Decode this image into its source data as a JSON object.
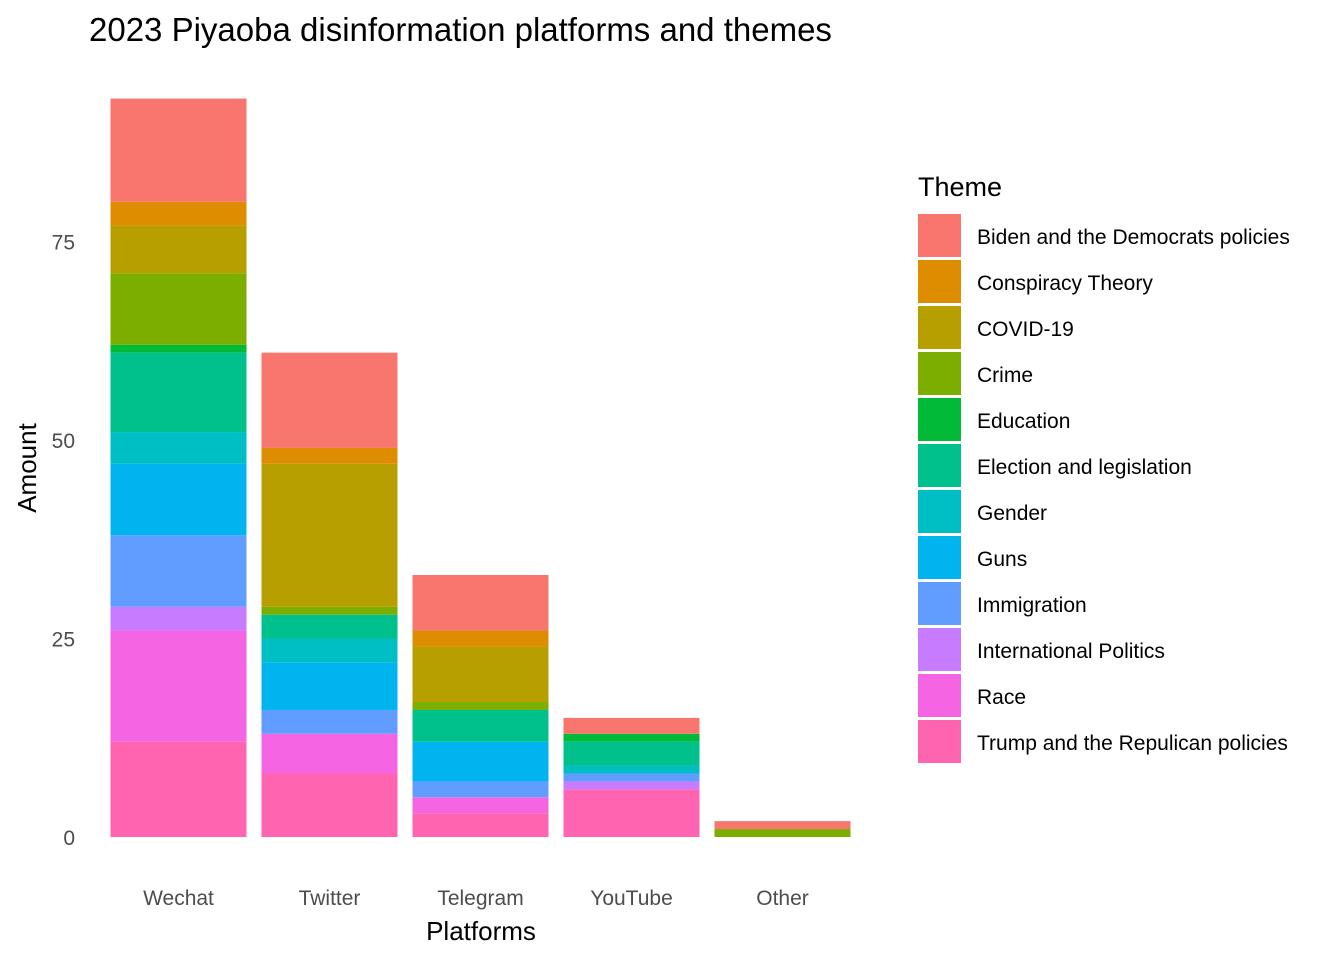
{
  "chart_data": {
    "type": "bar",
    "stacked": true,
    "title": "2023 Piyaoba disinformation platforms and themes",
    "xlabel": "Platforms",
    "ylabel": "Amount",
    "ylim": [
      0,
      95
    ],
    "yticks": [
      "0",
      "25",
      "50",
      "75"
    ],
    "grid": false,
    "legend_title": "Theme",
    "legend_placement": "right",
    "categories": [
      "Wechat",
      "Twitter",
      "Telegram",
      "YouTube",
      "Other"
    ],
    "series": [
      {
        "name": "Biden and the Democrats policies",
        "color": "#F8766D",
        "values": [
          13,
          12,
          7,
          2,
          1
        ]
      },
      {
        "name": "Conspiracy Theory",
        "color": "#DE8C00",
        "values": [
          3,
          2,
          2,
          0,
          0
        ]
      },
      {
        "name": "COVID-19",
        "color": "#B79F00",
        "values": [
          6,
          18,
          7,
          0,
          0
        ]
      },
      {
        "name": "Crime",
        "color": "#7CAE00",
        "values": [
          9,
          1,
          1,
          0,
          1
        ]
      },
      {
        "name": "Education",
        "color": "#00BA38",
        "values": [
          1,
          0,
          0,
          1,
          0
        ]
      },
      {
        "name": "Election and legislation",
        "color": "#00C08B",
        "values": [
          10,
          3,
          4,
          3,
          0
        ]
      },
      {
        "name": "Gender",
        "color": "#00BFC4",
        "values": [
          4,
          3,
          0,
          1,
          0
        ]
      },
      {
        "name": "Guns",
        "color": "#00B4F0",
        "values": [
          9,
          6,
          5,
          0,
          0
        ]
      },
      {
        "name": "Immigration",
        "color": "#619CFF",
        "values": [
          9,
          3,
          2,
          1,
          0
        ]
      },
      {
        "name": "International Politics",
        "color": "#C77CFF",
        "values": [
          3,
          0,
          0,
          1,
          0
        ]
      },
      {
        "name": "Race",
        "color": "#F564E3",
        "values": [
          14,
          5,
          2,
          0,
          0
        ]
      },
      {
        "name": "Trump and the Repulican policies",
        "color": "#FF64B0",
        "values": [
          12,
          8,
          3,
          6,
          0
        ]
      }
    ]
  }
}
